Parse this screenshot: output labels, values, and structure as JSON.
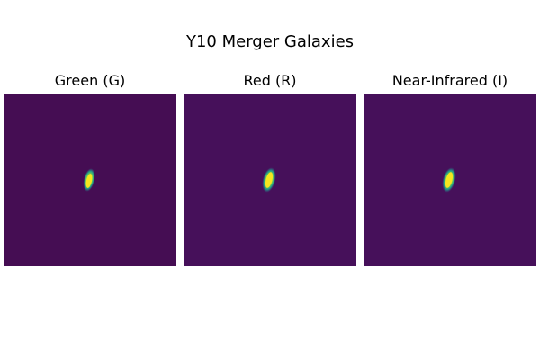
{
  "figure": {
    "title": "Y10 Merger Galaxies"
  },
  "colormap": "viridis",
  "colors": {
    "background": "#450d53",
    "core": "#f5e51f",
    "halo": "#1fa187"
  },
  "panels": [
    {
      "title": "Green (G)"
    },
    {
      "title": "Red (R)"
    },
    {
      "title": "Near-Infrared (I)"
    }
  ]
}
